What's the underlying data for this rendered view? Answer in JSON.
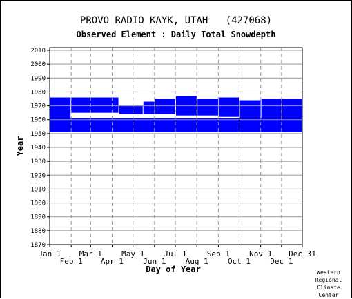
{
  "chart_data": {
    "type": "heatmap",
    "title": "PROVO RADIO KAYK, UTAH   (427068)",
    "subtitle": "Observed Element : Daily Total Snowdepth",
    "xlabel": "Day of Year",
    "ylabel": "Year",
    "ylim": [
      1870,
      2012
    ],
    "yticks": [
      1870,
      1880,
      1890,
      1900,
      1910,
      1920,
      1930,
      1940,
      1950,
      1960,
      1970,
      1980,
      1990,
      2000,
      2010
    ],
    "xlim": [
      1,
      365
    ],
    "x_ticks_top_row": [
      {
        "label": "Jan 1",
        "day": 1
      },
      {
        "label": "Mar 1",
        "day": 60
      },
      {
        "label": "May 1",
        "day": 121
      },
      {
        "label": "Jul 1",
        "day": 182
      },
      {
        "label": "Sep 1",
        "day": 244
      },
      {
        "label": "Nov 1",
        "day": 305
      },
      {
        "label": "Dec 31",
        "day": 365
      }
    ],
    "x_ticks_bottom_row": [
      {
        "label": "Feb 1",
        "day": 32
      },
      {
        "label": "Apr 1",
        "day": 91
      },
      {
        "label": "Jun 1",
        "day": 152
      },
      {
        "label": "Aug 1",
        "day": 213
      },
      {
        "label": "Oct 1",
        "day": 274
      },
      {
        "label": "Dec 1",
        "day": 335
      }
    ],
    "grid": {
      "horizontal": true,
      "vertical_dashed": true
    },
    "data_color": "#0000ff",
    "observed_year_blocks": [
      {
        "day_start": 1,
        "day_end": 365,
        "year_start": 1951,
        "year_end": 1961
      },
      {
        "day_start": 1,
        "day_end": 31,
        "year_start": 1961,
        "year_end": 1976
      },
      {
        "day_start": 32,
        "day_end": 100,
        "year_start": 1965,
        "year_end": 1976
      },
      {
        "day_start": 101,
        "day_end": 135,
        "year_start": 1964,
        "year_end": 1970
      },
      {
        "day_start": 136,
        "day_end": 152,
        "year_start": 1964,
        "year_end": 1973
      },
      {
        "day_start": 153,
        "day_end": 182,
        "year_start": 1964,
        "year_end": 1975
      },
      {
        "day_start": 183,
        "day_end": 213,
        "year_start": 1963,
        "year_end": 1977
      },
      {
        "day_start": 214,
        "day_end": 244,
        "year_start": 1963,
        "year_end": 1975
      },
      {
        "day_start": 245,
        "day_end": 274,
        "year_start": 1962,
        "year_end": 1976
      },
      {
        "day_start": 275,
        "day_end": 305,
        "year_start": 1961,
        "year_end": 1974
      },
      {
        "day_start": 306,
        "day_end": 335,
        "year_start": 1961,
        "year_end": 1975
      },
      {
        "day_start": 336,
        "day_end": 365,
        "year_start": 1961,
        "year_end": 1975
      }
    ]
  },
  "credit": [
    "Western",
    "Regional",
    "Climate",
    "Center"
  ]
}
